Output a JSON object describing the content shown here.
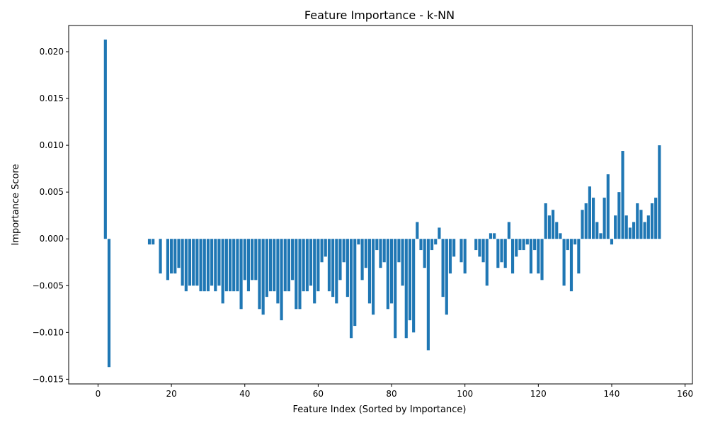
{
  "chart_data": {
    "type": "bar",
    "title": "Feature Importance - k-NN",
    "xlabel": "Feature Index (Sorted by Importance)",
    "ylabel": "Importance Score",
    "xlim": [
      -8,
      162
    ],
    "ylim": [
      -0.0155,
      0.0228
    ],
    "xticks": [
      0,
      20,
      40,
      60,
      80,
      100,
      120,
      140,
      160
    ],
    "xtick_labels": [
      "0",
      "20",
      "40",
      "60",
      "80",
      "100",
      "120",
      "140",
      "160"
    ],
    "yticks": [
      -0.015,
      -0.01,
      -0.005,
      0.0,
      0.005,
      0.01,
      0.015,
      0.02
    ],
    "ytick_labels": [
      "−0.015",
      "−0.010",
      "−0.005",
      "0.000",
      "0.005",
      "0.010",
      "0.015",
      "0.020"
    ],
    "grid": false,
    "bar_color": "#1f77b4",
    "x": [
      2,
      3,
      14,
      15,
      17,
      19,
      20,
      21,
      22,
      23,
      24,
      25,
      26,
      27,
      28,
      29,
      30,
      31,
      32,
      33,
      34,
      35,
      36,
      37,
      38,
      39,
      40,
      41,
      42,
      43,
      44,
      45,
      46,
      47,
      48,
      49,
      50,
      51,
      52,
      53,
      54,
      55,
      56,
      57,
      58,
      59,
      60,
      61,
      62,
      63,
      64,
      65,
      66,
      67,
      68,
      69,
      70,
      71,
      72,
      73,
      74,
      75,
      76,
      77,
      78,
      79,
      80,
      81,
      82,
      83,
      84,
      85,
      86,
      87,
      88,
      89,
      90,
      91,
      92,
      93,
      94,
      95,
      96,
      97,
      99,
      100,
      103,
      104,
      105,
      106,
      107,
      108,
      109,
      110,
      111,
      112,
      113,
      114,
      115,
      116,
      117,
      118,
      119,
      120,
      121,
      122,
      123,
      124,
      125,
      126,
      127,
      128,
      129,
      130,
      131,
      132,
      133,
      134,
      135,
      136,
      137,
      138,
      139,
      140,
      141,
      142,
      143,
      144,
      145,
      146,
      147,
      148,
      149,
      150,
      151,
      152,
      153
    ],
    "values": [
      0.0213,
      -0.0137,
      -0.0006,
      -0.0006,
      -0.0037,
      -0.0044,
      -0.0037,
      -0.0037,
      -0.0031,
      -0.005,
      -0.0056,
      -0.005,
      -0.005,
      -0.005,
      -0.0056,
      -0.0056,
      -0.0056,
      -0.005,
      -0.0056,
      -0.005,
      -0.0069,
      -0.0056,
      -0.0056,
      -0.0056,
      -0.0056,
      -0.0075,
      -0.0044,
      -0.0056,
      -0.0044,
      -0.0044,
      -0.0075,
      -0.0081,
      -0.0062,
      -0.0056,
      -0.0056,
      -0.0069,
      -0.0087,
      -0.0056,
      -0.0056,
      -0.0044,
      -0.0075,
      -0.0075,
      -0.0056,
      -0.0056,
      -0.005,
      -0.0069,
      -0.0056,
      -0.0025,
      -0.0019,
      -0.0056,
      -0.0062,
      -0.0069,
      -0.0044,
      -0.0025,
      -0.0062,
      -0.0106,
      -0.0093,
      -0.0006,
      -0.0044,
      -0.0031,
      -0.0069,
      -0.0081,
      -0.0012,
      -0.0031,
      -0.0025,
      -0.0075,
      -0.0069,
      -0.0106,
      -0.0025,
      -0.005,
      -0.0106,
      -0.0087,
      -0.01,
      0.0018,
      -0.0012,
      -0.0031,
      -0.0119,
      -0.0012,
      -0.0006,
      0.0012,
      -0.0062,
      -0.0081,
      -0.0037,
      -0.0019,
      -0.0025,
      -0.0037,
      -0.0012,
      -0.0019,
      -0.0025,
      -0.005,
      0.0006,
      0.0006,
      -0.0031,
      -0.0025,
      -0.0031,
      0.0018,
      -0.0037,
      -0.0019,
      -0.0012,
      -0.0012,
      -0.0006,
      -0.0037,
      -0.0012,
      -0.0037,
      -0.0044,
      0.0038,
      0.0025,
      0.0031,
      0.0018,
      0.0006,
      -0.005,
      -0.0012,
      -0.0056,
      -0.0006,
      -0.0037,
      0.0031,
      0.0038,
      0.0056,
      0.0044,
      0.0018,
      0.0006,
      0.0044,
      0.0069,
      -0.0006,
      0.0025,
      0.005,
      0.0094,
      0.0025,
      0.0012,
      0.0018,
      0.0038,
      0.0031,
      0.0018,
      0.0025,
      0.0038,
      0.0044,
      0.01
    ]
  }
}
